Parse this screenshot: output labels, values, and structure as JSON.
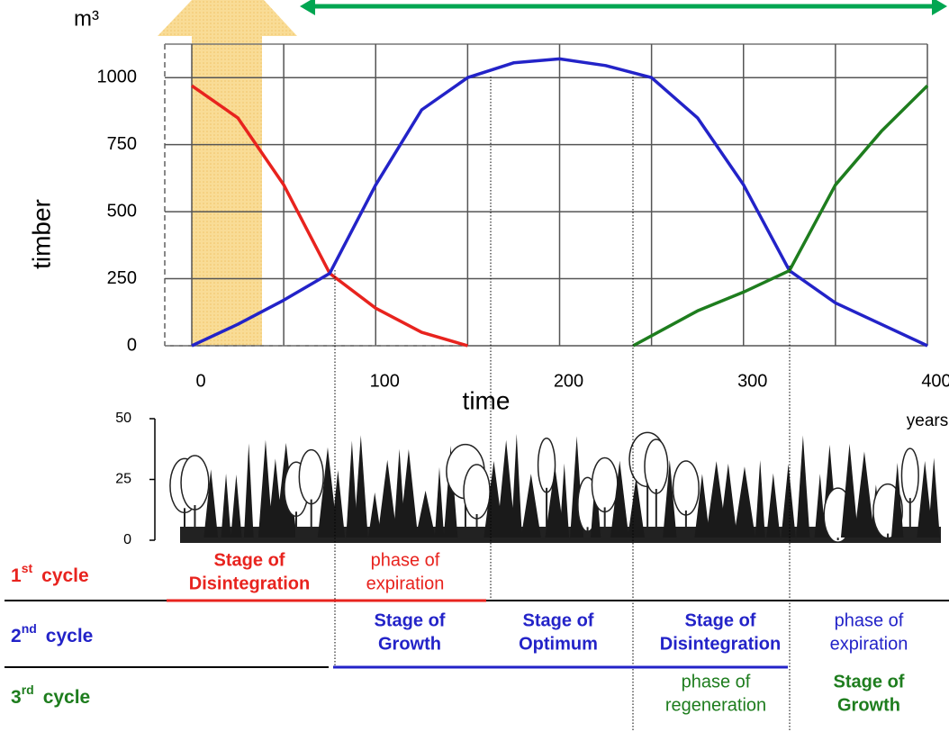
{
  "chart_data": {
    "type": "line",
    "y_unit": "m³",
    "y_label": "timber",
    "x_label": "time",
    "x_unit": "years",
    "xlim": [
      0,
      400
    ],
    "xticks": [
      0,
      100,
      200,
      300,
      400
    ],
    "x_gridlines": [
      0,
      50,
      100,
      150,
      200,
      250,
      300,
      350,
      400
    ],
    "ylim": [
      0,
      1125
    ],
    "yticks": [
      0,
      250,
      500,
      750,
      1000
    ],
    "grid": true,
    "series": [
      {
        "name": "1st cycle",
        "color": "#e8231e",
        "x": [
          0,
          25,
          50,
          75,
          100,
          125,
          150
        ],
        "values": [
          970,
          850,
          600,
          270,
          140,
          50,
          0
        ]
      },
      {
        "name": "2nd cycle",
        "color": "#2323c8",
        "x": [
          0,
          25,
          50,
          75,
          100,
          125,
          150,
          175,
          200,
          225,
          250,
          275,
          300,
          325,
          350,
          375,
          400
        ],
        "values": [
          0,
          80,
          170,
          270,
          600,
          880,
          1000,
          1055,
          1070,
          1045,
          1000,
          850,
          600,
          280,
          160,
          80,
          0
        ]
      },
      {
        "name": "3rd cycle",
        "color": "#1e7d1e",
        "x": [
          240,
          275,
          300,
          325,
          350,
          375,
          400
        ],
        "values": [
          0,
          130,
          200,
          280,
          600,
          800,
          970
        ]
      }
    ],
    "height_axis": {
      "ylim": [
        0,
        50
      ],
      "yticks": [
        0,
        25,
        50
      ]
    }
  },
  "cycles": [
    {
      "ordinal": "1",
      "suffix": "st",
      "label": "cycle",
      "color": "#e8231e",
      "stages": [
        {
          "lines": [
            "Stage of",
            "Disintegration"
          ],
          "bold": true
        },
        {
          "lines": [
            "phase of",
            "expiration"
          ],
          "bold": false
        }
      ]
    },
    {
      "ordinal": "2",
      "suffix": "nd",
      "label": "cycle",
      "color": "#2323c8",
      "stages": [
        {
          "lines": [
            "Stage of",
            "Growth"
          ],
          "bold": true
        },
        {
          "lines": [
            "Stage of",
            "Optimum"
          ],
          "bold": true
        },
        {
          "lines": [
            "Stage of",
            "Disintegration"
          ],
          "bold": true
        },
        {
          "lines": [
            "phase of",
            "expiration"
          ],
          "bold": false
        }
      ]
    },
    {
      "ordinal": "3",
      "suffix": "rd",
      "label": "cycle",
      "color": "#1e7d1e",
      "stages": [
        {
          "lines": [
            "phase of",
            "regeneration"
          ],
          "bold": false
        },
        {
          "lines": [
            "Stage of",
            "Growth"
          ],
          "bold": true
        }
      ]
    }
  ]
}
